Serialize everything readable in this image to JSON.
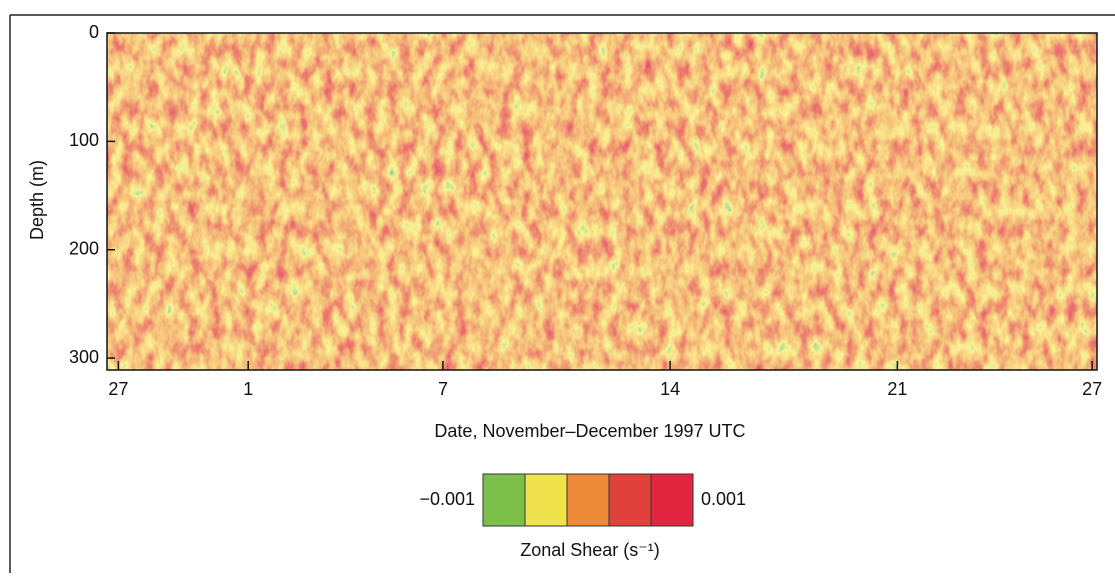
{
  "chart_data": {
    "type": "heatmap",
    "x_label": "Date, November–December 1997 UTC",
    "y_label": "Depth (m)",
    "xlim": [
      -0.35,
      30.15
    ],
    "xticks": [
      {
        "value": 0,
        "label": "27"
      },
      {
        "value": 4,
        "label": "1"
      },
      {
        "value": 10,
        "label": "7"
      },
      {
        "value": 17,
        "label": "14"
      },
      {
        "value": 24,
        "label": "21"
      },
      {
        "value": 30,
        "label": "27"
      }
    ],
    "ylim": [
      0,
      311
    ],
    "yticks": [
      0,
      100,
      200,
      300
    ],
    "y_inverted": true,
    "colorbar": {
      "label": "Zonal Shear (s⁻¹)",
      "ticks": [
        {
          "value": -0.001,
          "label": "−0.001"
        },
        {
          "value": 0.001,
          "label": "0.001"
        }
      ],
      "colors": [
        "#7cc04a",
        "#efe24c",
        "#ec8a3a",
        "#e0413a",
        "#e3263f"
      ]
    }
  }
}
